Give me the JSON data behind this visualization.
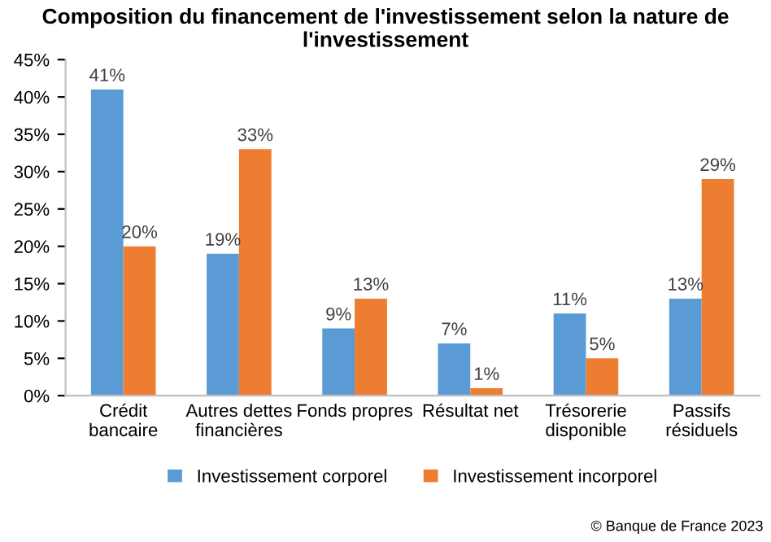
{
  "chart_data": {
    "type": "bar",
    "title": "Composition du financement de l'investissement selon la nature de l'investissement",
    "categories": [
      "Crédit\nbancaire",
      "Autres dettes\nfinancières",
      "Fonds propres",
      "Résultat net",
      "Trésorerie\ndisponible",
      "Passifs\nrésiduels"
    ],
    "series": [
      {
        "name": "Investissement corporel",
        "color": "#5b9bd5",
        "values": [
          41,
          19,
          9,
          7,
          11,
          13
        ],
        "value_labels": [
          "41%",
          "19%",
          "9%",
          "7%",
          "11%",
          "13%"
        ]
      },
      {
        "name": "Investissement incorporel",
        "color": "#ed7d31",
        "values": [
          20,
          33,
          13,
          1,
          5,
          29
        ],
        "value_labels": [
          "20%",
          "33%",
          "13%",
          "1%",
          "5%",
          "29%"
        ]
      }
    ],
    "ylim": [
      0,
      45
    ],
    "yticks": [
      {
        "value": 0,
        "label": "0%"
      },
      {
        "value": 5,
        "label": "5%"
      },
      {
        "value": 10,
        "label": "10%"
      },
      {
        "value": 15,
        "label": "15%"
      },
      {
        "value": 20,
        "label": "20%"
      },
      {
        "value": 25,
        "label": "25%"
      },
      {
        "value": 30,
        "label": "30%"
      },
      {
        "value": 35,
        "label": "35%"
      },
      {
        "value": 40,
        "label": "40%"
      },
      {
        "value": 45,
        "label": "45%"
      }
    ],
    "grid": false,
    "legend": "bottom",
    "annotations": [
      "© Banque de France 2023"
    ]
  }
}
